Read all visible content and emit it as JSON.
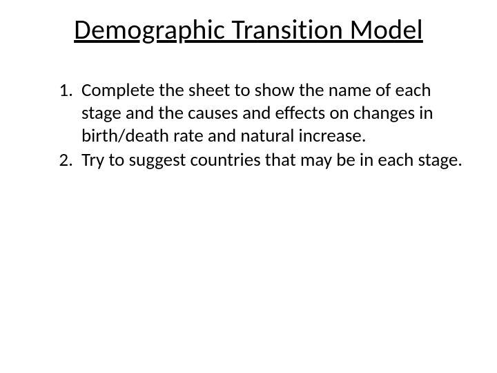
{
  "slide": {
    "title": "Demographic Transition Model",
    "items": [
      "Complete the sheet to show the name of each stage and the causes and effects on changes in birth/death rate and natural increase.",
      "Try to suggest countries that may be in each stage."
    ]
  },
  "style": {
    "background_color": "#ffffff",
    "text_color": "#000000",
    "title_fontsize": 40,
    "body_fontsize": 27,
    "font_family": "Calibri"
  }
}
